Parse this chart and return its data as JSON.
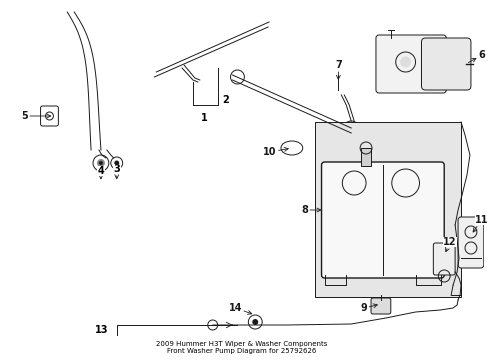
{
  "bg_color": "#ffffff",
  "line_color": "#1a1a1a",
  "label_color": "#000000",
  "title": "2009 Hummer H3T Wiper & Washer Components\nFront Washer Pump Diagram for 25792626"
}
